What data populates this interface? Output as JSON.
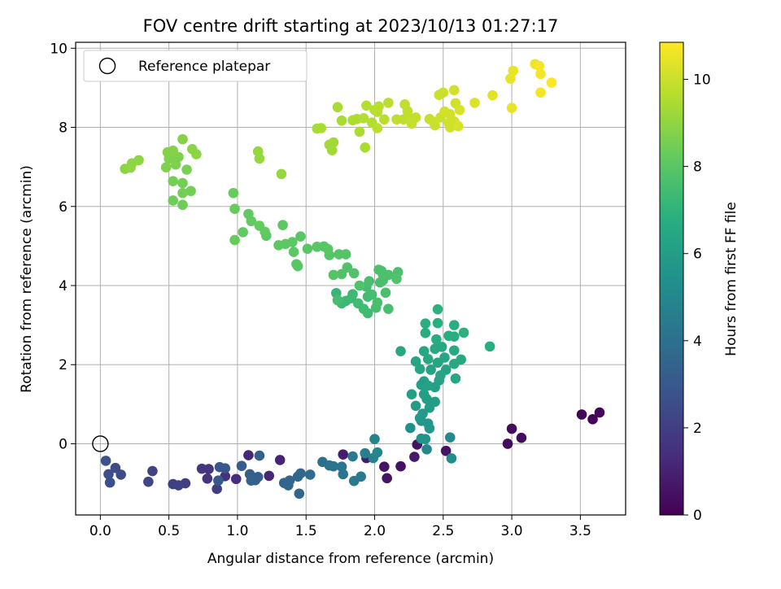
{
  "chart_data": {
    "type": "scatter",
    "title": "FOV centre drift starting at 2023/10/13 01:27:17",
    "xlabel": "Angular distance from reference (arcmin)",
    "ylabel": "Rotation from reference (arcmin)",
    "xlim": [
      -0.18,
      3.83
    ],
    "ylim": [
      -1.8,
      10.15
    ],
    "xticks": [
      "0.0",
      "0.5",
      "1.0",
      "1.5",
      "2.0",
      "2.5",
      "3.0",
      "3.5"
    ],
    "yticks": [
      "0",
      "2",
      "4",
      "6",
      "8",
      "10"
    ],
    "grid": true,
    "legend": {
      "position": "top-left",
      "entries": [
        "Reference platepar"
      ]
    },
    "reference_point": {
      "x": 0.0,
      "y": 0.0
    },
    "colorbar": {
      "label": "Hours from first FF file",
      "range": [
        0,
        10.85
      ],
      "ticks": [
        "0",
        "2",
        "4",
        "6",
        "8",
        "10"
      ],
      "colormap": "viridis"
    },
    "series": [
      {
        "points": [
          [
            3.51,
            0.74,
            0.1
          ],
          [
            3.59,
            0.62,
            0.1
          ],
          [
            3.64,
            0.79,
            0.1
          ],
          [
            2.97,
            0.0,
            0.3
          ],
          [
            3.0,
            0.38,
            0.3
          ],
          [
            3.07,
            0.15,
            0.3
          ],
          [
            2.31,
            -0.02,
            0.5
          ],
          [
            2.52,
            -0.18,
            0.6
          ],
          [
            2.19,
            -0.57,
            0.5
          ],
          [
            2.09,
            -0.87,
            0.6
          ],
          [
            2.07,
            -0.58,
            0.6
          ],
          [
            1.94,
            -0.36,
            0.8
          ],
          [
            2.29,
            -0.33,
            0.8
          ],
          [
            1.77,
            -0.27,
            0.9
          ],
          [
            1.31,
            -0.41,
            1.1
          ],
          [
            1.23,
            -0.81,
            1.2
          ],
          [
            1.08,
            -0.29,
            1.2
          ],
          [
            0.99,
            -0.89,
            1.4
          ],
          [
            0.91,
            -0.82,
            1.5
          ],
          [
            0.78,
            -0.88,
            1.6
          ],
          [
            0.74,
            -0.63,
            1.7
          ],
          [
            0.79,
            -0.64,
            1.7
          ],
          [
            0.85,
            -1.14,
            1.9
          ],
          [
            0.62,
            -1.0,
            2.0
          ],
          [
            0.53,
            -1.02,
            2.0
          ],
          [
            0.57,
            -1.05,
            2.1
          ],
          [
            0.38,
            -0.69,
            2.2
          ],
          [
            0.35,
            -0.96,
            2.3
          ],
          [
            0.15,
            -0.78,
            2.4
          ],
          [
            0.11,
            -0.61,
            2.5
          ],
          [
            0.06,
            -0.77,
            2.6
          ],
          [
            0.04,
            -0.43,
            2.7
          ],
          [
            0.07,
            -0.98,
            2.6
          ],
          [
            0.87,
            -0.59,
            2.9
          ],
          [
            0.91,
            -0.62,
            2.9
          ],
          [
            0.86,
            -0.93,
            3.0
          ],
          [
            1.03,
            -0.56,
            3.1
          ],
          [
            1.09,
            -0.77,
            3.2
          ],
          [
            1.13,
            -0.92,
            3.3
          ],
          [
            1.16,
            -0.3,
            3.3
          ],
          [
            1.15,
            -0.84,
            3.3
          ],
          [
            1.1,
            -0.93,
            3.4
          ],
          [
            1.34,
            -0.99,
            3.5
          ],
          [
            1.37,
            -1.05,
            3.6
          ],
          [
            1.44,
            -0.83,
            3.6
          ],
          [
            1.46,
            -0.75,
            3.6
          ],
          [
            1.38,
            -0.93,
            3.6
          ],
          [
            1.45,
            -1.26,
            3.6
          ],
          [
            1.53,
            -0.78,
            3.8
          ],
          [
            1.62,
            -0.46,
            4.0
          ],
          [
            1.67,
            -0.55,
            4.1
          ],
          [
            1.7,
            -0.57,
            4.1
          ],
          [
            1.76,
            -0.58,
            4.2
          ],
          [
            1.77,
            -0.77,
            4.2
          ],
          [
            1.84,
            -0.32,
            4.4
          ],
          [
            1.85,
            -0.94,
            4.4
          ],
          [
            1.9,
            -0.83,
            4.4
          ],
          [
            1.93,
            -0.24,
            4.6
          ],
          [
            2.0,
            0.12,
            4.8
          ],
          [
            1.99,
            -0.36,
            4.8
          ],
          [
            2.02,
            -0.22,
            4.9
          ],
          [
            2.38,
            -0.14,
            5.0
          ],
          [
            2.55,
            0.16,
            5.1
          ],
          [
            2.56,
            -0.37,
            5.3
          ],
          [
            2.26,
            0.4,
            5.4
          ],
          [
            2.34,
            0.13,
            5.5
          ],
          [
            2.37,
            0.12,
            5.6
          ],
          [
            2.34,
            0.58,
            5.6
          ],
          [
            2.39,
            0.51,
            5.7
          ],
          [
            2.4,
            0.39,
            5.7
          ],
          [
            2.35,
            0.76,
            5.8
          ],
          [
            2.33,
            0.65,
            5.8
          ],
          [
            2.3,
            0.96,
            5.9
          ],
          [
            2.38,
            1.13,
            6.0
          ],
          [
            2.4,
            0.91,
            6.0
          ],
          [
            2.44,
            1.06,
            6.0
          ],
          [
            2.36,
            1.25,
            6.1
          ],
          [
            2.27,
            1.25,
            6.1
          ],
          [
            2.44,
            1.43,
            6.1
          ],
          [
            2.36,
            1.58,
            6.1
          ],
          [
            2.34,
            1.49,
            6.1
          ],
          [
            2.41,
            1.87,
            6.2
          ],
          [
            2.39,
            1.47,
            6.2
          ],
          [
            2.47,
            1.6,
            6.2
          ],
          [
            2.52,
            1.87,
            6.2
          ],
          [
            2.48,
            1.73,
            6.3
          ],
          [
            2.46,
            2.05,
            6.3
          ],
          [
            2.3,
            2.08,
            6.3
          ],
          [
            2.33,
            1.89,
            6.3
          ],
          [
            2.51,
            2.18,
            6.4
          ],
          [
            2.59,
            1.65,
            6.4
          ],
          [
            2.36,
            2.34,
            6.4
          ],
          [
            2.39,
            2.14,
            6.5
          ],
          [
            2.44,
            2.4,
            6.5
          ],
          [
            2.49,
            2.45,
            6.5
          ],
          [
            2.19,
            2.34,
            6.5
          ],
          [
            2.58,
            2.02,
            6.5
          ],
          [
            2.63,
            2.13,
            6.6
          ],
          [
            2.58,
            2.36,
            6.6
          ],
          [
            2.37,
            2.8,
            6.7
          ],
          [
            2.45,
            2.64,
            6.7
          ],
          [
            2.54,
            2.73,
            6.7
          ],
          [
            2.58,
            2.71,
            6.8
          ],
          [
            2.37,
            3.04,
            6.8
          ],
          [
            2.84,
            2.46,
            6.8
          ],
          [
            2.46,
            3.05,
            6.8
          ],
          [
            2.58,
            3.0,
            6.8
          ],
          [
            2.65,
            2.81,
            6.9
          ],
          [
            2.46,
            3.4,
            6.9
          ],
          [
            1.72,
            3.81,
            7.2
          ],
          [
            1.76,
            3.55,
            7.3
          ],
          [
            1.79,
            3.61,
            7.3
          ],
          [
            1.83,
            3.68,
            7.3
          ],
          [
            1.84,
            3.78,
            7.3
          ],
          [
            1.88,
            3.55,
            7.4
          ],
          [
            1.92,
            3.41,
            7.4
          ],
          [
            1.95,
            3.3,
            7.4
          ],
          [
            1.95,
            3.72,
            7.4
          ],
          [
            1.94,
            3.97,
            7.5
          ],
          [
            1.98,
            3.77,
            7.5
          ],
          [
            1.73,
            3.63,
            7.5
          ],
          [
            1.96,
            4.11,
            7.6
          ],
          [
            2.01,
            3.44,
            7.5
          ],
          [
            2.02,
            3.57,
            7.6
          ],
          [
            2.04,
            4.08,
            7.6
          ],
          [
            2.08,
            3.82,
            7.6
          ],
          [
            2.06,
            4.13,
            7.6
          ],
          [
            2.1,
            3.41,
            7.6
          ],
          [
            2.06,
            4.28,
            7.7
          ],
          [
            2.05,
            4.37,
            7.7
          ],
          [
            2.03,
            4.4,
            7.7
          ],
          [
            2.1,
            4.27,
            7.7
          ],
          [
            2.17,
            4.34,
            7.7
          ],
          [
            2.16,
            4.17,
            7.8
          ],
          [
            1.89,
            4.0,
            7.8
          ],
          [
            1.85,
            4.31,
            7.8
          ],
          [
            1.8,
            4.46,
            7.8
          ],
          [
            1.76,
            4.29,
            7.8
          ],
          [
            1.74,
            4.79,
            7.9
          ],
          [
            1.7,
            4.27,
            7.9
          ],
          [
            1.79,
            4.79,
            7.9
          ],
          [
            1.67,
            4.77,
            7.9
          ],
          [
            1.63,
            4.99,
            7.9
          ],
          [
            1.66,
            4.92,
            8.0
          ],
          [
            1.58,
            4.98,
            8.0
          ],
          [
            1.51,
            4.93,
            8.0
          ],
          [
            1.46,
            5.24,
            8.0
          ],
          [
            1.43,
            4.54,
            8.0
          ],
          [
            1.44,
            4.49,
            8.0
          ],
          [
            1.4,
            5.1,
            8.1
          ],
          [
            1.35,
            5.05,
            8.1
          ],
          [
            1.33,
            5.53,
            8.1
          ],
          [
            1.3,
            5.02,
            8.1
          ],
          [
            1.41,
            4.85,
            8.1
          ],
          [
            1.21,
            5.26,
            8.1
          ],
          [
            1.2,
            5.36,
            8.2
          ],
          [
            1.16,
            5.51,
            8.2
          ],
          [
            1.1,
            5.63,
            8.2
          ],
          [
            1.08,
            5.81,
            8.2
          ],
          [
            1.04,
            5.35,
            8.2
          ],
          [
            0.98,
            5.15,
            8.3
          ],
          [
            0.98,
            5.94,
            8.3
          ],
          [
            0.97,
            6.34,
            8.3
          ],
          [
            0.6,
            6.04,
            8.4
          ],
          [
            0.53,
            6.15,
            8.4
          ],
          [
            0.6,
            6.34,
            8.5
          ],
          [
            0.66,
            6.39,
            8.5
          ],
          [
            0.53,
            6.64,
            8.5
          ],
          [
            0.6,
            6.59,
            8.5
          ],
          [
            0.63,
            6.93,
            8.6
          ],
          [
            0.48,
            6.99,
            8.7
          ],
          [
            0.55,
            7.06,
            8.7
          ],
          [
            0.5,
            7.21,
            8.7
          ],
          [
            0.57,
            7.25,
            8.7
          ],
          [
            0.49,
            7.37,
            8.8
          ],
          [
            0.53,
            7.41,
            8.8
          ],
          [
            0.6,
            7.7,
            8.8
          ],
          [
            0.67,
            7.45,
            8.9
          ],
          [
            0.7,
            7.32,
            8.9
          ],
          [
            0.18,
            6.95,
            8.9
          ],
          [
            0.22,
            6.98,
            9.0
          ],
          [
            0.23,
            7.09,
            9.0
          ],
          [
            0.28,
            7.17,
            9.0
          ],
          [
            1.15,
            7.39,
            9.1
          ],
          [
            1.16,
            7.21,
            9.1
          ],
          [
            1.32,
            6.82,
            9.1
          ],
          [
            1.69,
            7.42,
            9.3
          ],
          [
            1.67,
            7.56,
            9.3
          ],
          [
            1.7,
            7.62,
            9.3
          ],
          [
            1.58,
            7.97,
            9.4
          ],
          [
            1.61,
            7.98,
            9.4
          ],
          [
            1.73,
            8.51,
            9.4
          ],
          [
            1.76,
            8.17,
            9.4
          ],
          [
            1.84,
            8.18,
            9.5
          ],
          [
            1.89,
            7.89,
            9.5
          ],
          [
            1.87,
            8.21,
            9.5
          ],
          [
            1.93,
            7.49,
            9.5
          ],
          [
            1.92,
            8.23,
            9.6
          ],
          [
            1.94,
            8.55,
            9.6
          ],
          [
            1.98,
            8.12,
            9.6
          ],
          [
            2.0,
            8.44,
            9.6
          ],
          [
            2.02,
            7.98,
            9.7
          ],
          [
            2.02,
            8.39,
            9.7
          ],
          [
            2.03,
            8.53,
            9.7
          ],
          [
            2.07,
            8.2,
            9.7
          ],
          [
            2.1,
            8.62,
            9.7
          ],
          [
            2.16,
            8.2,
            9.8
          ],
          [
            2.21,
            8.2,
            9.8
          ],
          [
            2.25,
            8.23,
            9.8
          ],
          [
            2.22,
            8.58,
            9.8
          ],
          [
            2.24,
            8.41,
            9.8
          ],
          [
            2.27,
            8.09,
            9.9
          ],
          [
            2.3,
            8.25,
            9.9
          ],
          [
            2.28,
            8.21,
            9.9
          ],
          [
            2.4,
            8.21,
            9.9
          ],
          [
            2.43,
            8.14,
            10.0
          ],
          [
            2.44,
            8.05,
            10.0
          ],
          [
            2.47,
            8.82,
            10.0
          ],
          [
            2.48,
            8.25,
            10.0
          ],
          [
            2.5,
            8.88,
            10.0
          ],
          [
            2.51,
            8.4,
            10.1
          ],
          [
            2.54,
            8.11,
            10.1
          ],
          [
            2.55,
            8.33,
            10.1
          ],
          [
            2.55,
            8.0,
            10.1
          ],
          [
            2.58,
            8.94,
            10.1
          ],
          [
            2.59,
            8.61,
            10.1
          ],
          [
            2.58,
            8.15,
            10.1
          ],
          [
            2.61,
            8.03,
            10.2
          ],
          [
            2.62,
            8.44,
            10.2
          ],
          [
            2.73,
            8.62,
            10.3
          ],
          [
            2.86,
            8.81,
            10.4
          ],
          [
            2.99,
            9.23,
            10.5
          ],
          [
            3.01,
            9.43,
            10.5
          ],
          [
            3.0,
            8.49,
            10.5
          ],
          [
            3.17,
            9.6,
            10.6
          ],
          [
            3.2,
            9.55,
            10.7
          ],
          [
            3.21,
            9.35,
            10.7
          ],
          [
            3.21,
            8.88,
            10.7
          ],
          [
            3.29,
            9.13,
            10.8
          ]
        ]
      }
    ]
  }
}
